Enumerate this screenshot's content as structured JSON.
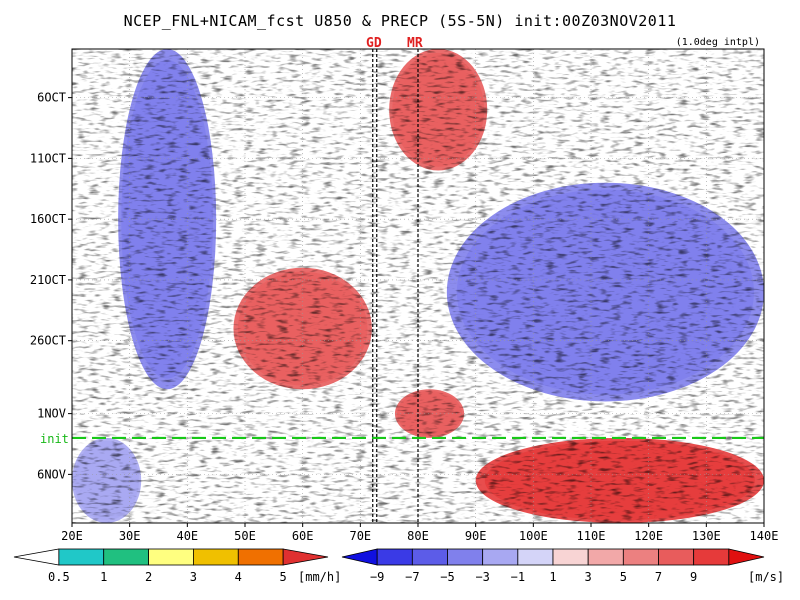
{
  "header": {
    "title": "NCEP_FNL+NICAM_fcst U850 & PRECP (5S-5N) init:00Z03NOV2011",
    "note": "(1.0deg intpl)"
  },
  "markers": {
    "gd": {
      "label": "GD",
      "lon": 72.5
    },
    "mr": {
      "label": "MR",
      "lon": 80
    },
    "init": {
      "label": "init",
      "date": "3NOV"
    }
  },
  "chart_data": {
    "type": "heatmap",
    "title": "NCEP_FNL+NICAM_fcst U850 & PRECP (5S-5N) init:00Z03NOV2011",
    "x_range": [
      20,
      140
    ],
    "x_ticks": [
      20,
      30,
      40,
      50,
      60,
      70,
      80,
      90,
      100,
      110,
      120,
      130,
      140
    ],
    "x_tick_labels": [
      "20E",
      "30E",
      "40E",
      "50E",
      "60E",
      "70E",
      "80E",
      "90E",
      "100E",
      "110E",
      "120E",
      "130E",
      "140E"
    ],
    "y_ticks": [
      "6OCT",
      "11OCT",
      "16OCT",
      "21OCT",
      "26OCT",
      "1NOV",
      "6NOV"
    ],
    "y_axis_start": "2OCT",
    "y_axis_end": "10NOV",
    "grid": true,
    "u850_colorbar": {
      "unit": "[m/s]",
      "labels": [
        "−9",
        "−7",
        "−5",
        "−3",
        "−1",
        "1",
        "3",
        "5",
        "7",
        "9"
      ],
      "colors": [
        "#1010e0",
        "#3a3ae6",
        "#5c5ce8",
        "#8080ec",
        "#a8a8f2",
        "#d4d4f8",
        "#ffffff",
        "#f8d4d4",
        "#f2a8a8",
        "#ec8080",
        "#e85c5c",
        "#e63a3a",
        "#e01010"
      ]
    },
    "precip_colorbar": {
      "unit": "[mm/h]",
      "labels": [
        "0.5",
        "1",
        "2",
        "3",
        "4",
        "5"
      ],
      "colors": [
        "#ffffff",
        "#20c8c8",
        "#20c080",
        "#ffff80",
        "#f0c000",
        "#f07000",
        "#e03030"
      ]
    },
    "regions": [
      {
        "kind": "westerly",
        "lon": [
          75,
          92
        ],
        "date": [
          "2OCT",
          "12OCT"
        ],
        "peak": 7
      },
      {
        "kind": "westerly",
        "lon": [
          48,
          72
        ],
        "date": [
          "20OCT",
          "30OCT"
        ],
        "peak": 7
      },
      {
        "kind": "westerly",
        "lon": [
          76,
          88
        ],
        "date": [
          "30OCT",
          "3NOV"
        ],
        "peak": 7
      },
      {
        "kind": "westerly",
        "lon": [
          90,
          140
        ],
        "date": [
          "3NOV",
          "10NOV"
        ],
        "peak": 9
      },
      {
        "kind": "easterly",
        "lon": [
          28,
          45
        ],
        "date": [
          "2OCT",
          "30OCT"
        ],
        "peak": -7
      },
      {
        "kind": "easterly",
        "lon": [
          85,
          140
        ],
        "date": [
          "13OCT",
          "31OCT"
        ],
        "peak": -7
      },
      {
        "kind": "easterly",
        "lon": [
          20,
          32
        ],
        "date": [
          "3NOV",
          "10NOV"
        ],
        "peak": -5
      }
    ]
  },
  "legend": {
    "precip_unit": "[mm/h]",
    "u850_unit": "[m/s]"
  }
}
